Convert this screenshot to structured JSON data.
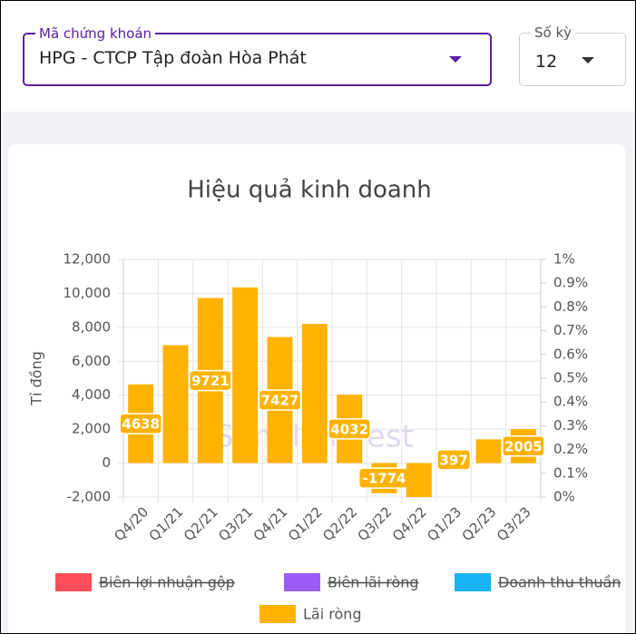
{
  "form": {
    "stock_label": "Mã chứng khoán",
    "stock_value": "HPG - CTCP Tập đoàn Hòa Phát",
    "period_label": "Số kỳ",
    "period_value": "12"
  },
  "chart_data": {
    "type": "bar",
    "title": "Hiệu quả kinh doanh",
    "y_label": "Tỉ đồng",
    "watermark": "SimpleInvest",
    "categories": [
      "Q4/20",
      "Q1/21",
      "Q2/21",
      "Q3/21",
      "Q4/21",
      "Q1/22",
      "Q2/22",
      "Q3/22",
      "Q4/22",
      "Q1/23",
      "Q2/23",
      "Q3/23"
    ],
    "series": [
      {
        "name": "Biên lợi nhuận gộp",
        "color": "#ff4d5a",
        "hidden": true,
        "axis": "y2"
      },
      {
        "name": "Biên lãi ròng",
        "color": "#9b5cf6",
        "hidden": true,
        "axis": "y2"
      },
      {
        "name": "Doanh thu thuần",
        "color": "#18b4f5",
        "hidden": true
      },
      {
        "name": "Lãi ròng",
        "color": "#ffb300",
        "hidden": false,
        "values": [
          4638,
          6950,
          9721,
          10350,
          7427,
          8200,
          4032,
          -1774,
          -2000,
          397,
          1400,
          2005
        ],
        "value_labels": [
          "4638",
          null,
          "9721",
          null,
          "7427",
          null,
          "4032",
          "-1774",
          null,
          "397",
          null,
          "2005"
        ]
      }
    ],
    "ylim": [
      -2000,
      12000
    ],
    "yticks": [
      {
        "value": -2000,
        "label": "-2,000"
      },
      0,
      {
        "value": 2000,
        "label": "2,000"
      },
      {
        "value": 4000,
        "label": "4,000"
      },
      {
        "value": 6000,
        "label": "6,000"
      },
      {
        "value": 8000,
        "label": "8,000"
      },
      {
        "value": 10000,
        "label": "10,000"
      },
      {
        "value": 12000,
        "label": "12,000"
      }
    ],
    "y2lim": [
      0,
      1
    ],
    "y2ticks": [
      {
        "value": 0,
        "label": "0%"
      },
      {
        "value": 0.1,
        "label": "0.1%"
      },
      {
        "value": 0.2,
        "label": "0.2%"
      },
      {
        "value": 0.3,
        "label": "0.3%"
      },
      {
        "value": 0.4,
        "label": "0.4%"
      },
      {
        "value": 0.5,
        "label": "0.5%"
      },
      {
        "value": 0.6,
        "label": "0.6%"
      },
      {
        "value": 0.7,
        "label": "0.7%"
      },
      {
        "value": 0.8,
        "label": "0.8%"
      },
      {
        "value": 0.9,
        "label": "0.9%"
      },
      {
        "value": 1,
        "label": "1%"
      }
    ],
    "grid": true
  }
}
